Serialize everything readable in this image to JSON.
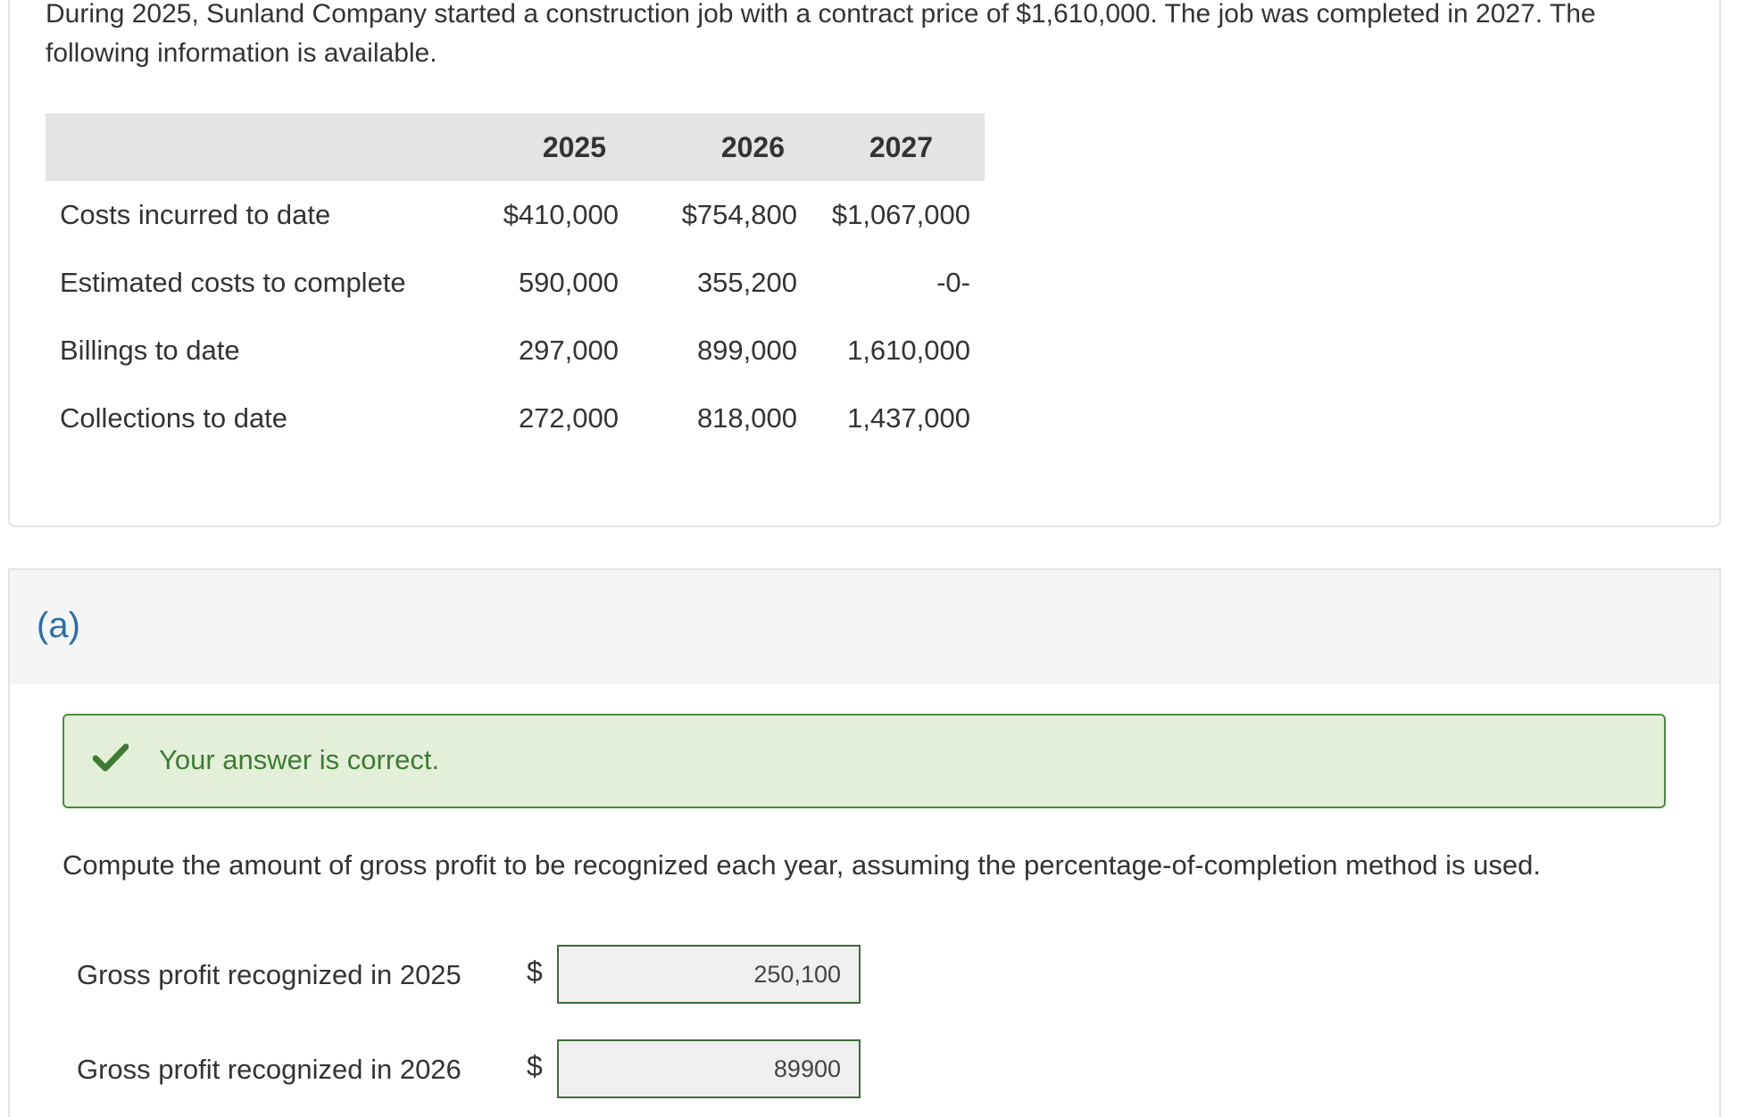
{
  "problem": {
    "intro": "During 2025, Sunland Company started a construction job with a contract price of $1,610,000. The job was completed in 2027. The following information is available.",
    "table": {
      "headers": [
        "",
        "2025",
        "2026",
        "2027"
      ],
      "rows": [
        {
          "label": "Costs incurred to date",
          "values": [
            "$410,000",
            "$754,800",
            "$1,067,000"
          ]
        },
        {
          "label": "Estimated costs to complete",
          "values": [
            "590,000",
            "355,200",
            "-0-"
          ]
        },
        {
          "label": "Billings to date",
          "values": [
            "297,000",
            "899,000",
            "1,610,000"
          ]
        },
        {
          "label": "Collections to date",
          "values": [
            "272,000",
            "818,000",
            "1,437,000"
          ]
        }
      ]
    }
  },
  "part": {
    "label": "(a)",
    "feedback": "Your answer is correct.",
    "feedback_color": "#3f7a35",
    "check_icon": "check-icon",
    "question": "Compute the amount of gross profit to be recognized each year, assuming the percentage-of-completion method is used.",
    "answers": [
      {
        "label": "Gross profit recognized in 2025",
        "currency": "$",
        "value": "250,100"
      },
      {
        "label": "Gross profit recognized in 2026",
        "currency": "$",
        "value": "89900"
      }
    ]
  }
}
